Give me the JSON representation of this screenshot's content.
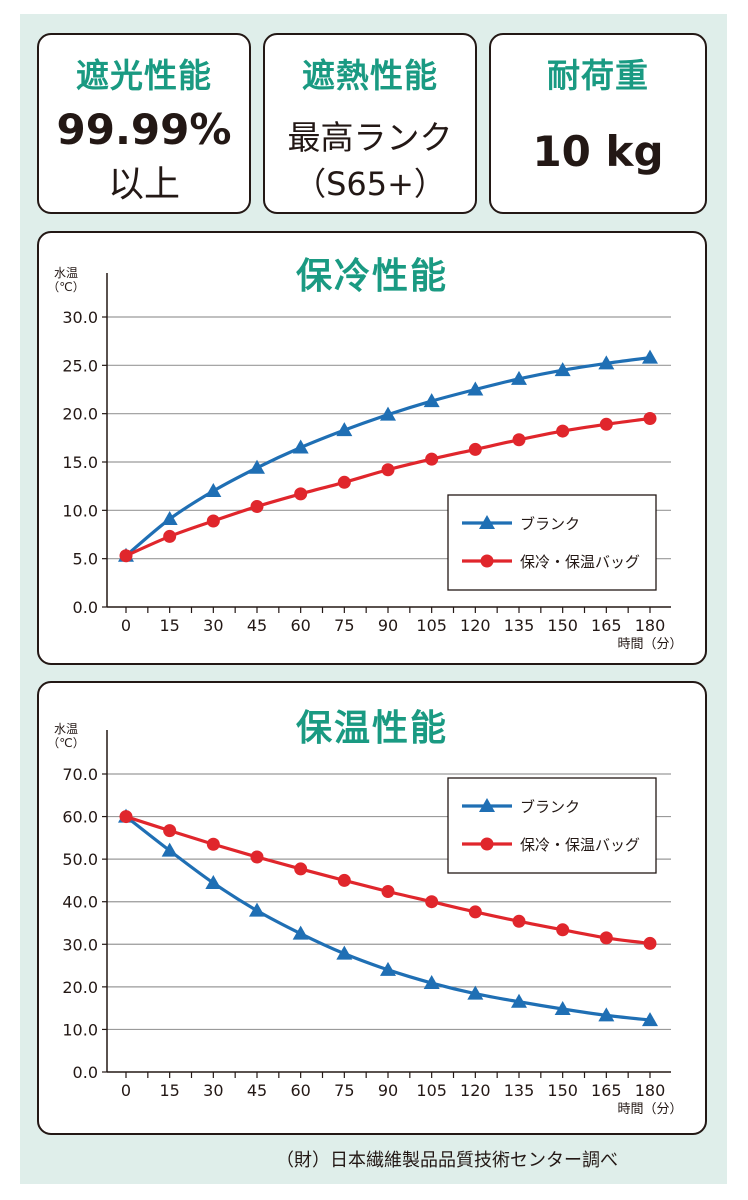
{
  "specs": [
    {
      "title": "遮光性能",
      "line1": "99.99%",
      "line2": "以上"
    },
    {
      "title": "遮熱性能",
      "line1": "最高ランク",
      "line2": "（S65+）"
    },
    {
      "title": "耐荷重",
      "line1": "10 kg",
      "line2": ""
    }
  ],
  "chart_data": [
    {
      "type": "line",
      "title": "保冷性能",
      "ylabel": "水温\n（℃）",
      "xlabel": "時間（分）",
      "x": [
        0,
        15,
        30,
        45,
        60,
        75,
        90,
        105,
        120,
        135,
        150,
        165,
        180
      ],
      "ylim": [
        0,
        30
      ],
      "yticks": [
        "0.0",
        "5.0",
        "10.0",
        "15.0",
        "20.0",
        "25.0",
        "30.0"
      ],
      "grid": true,
      "legend_position": "bottom-right",
      "series": [
        {
          "name": "ブランク",
          "color": "#1f6fb4",
          "marker": "triangle",
          "values": [
            5.3,
            9.1,
            12.0,
            14.4,
            16.5,
            18.3,
            19.9,
            21.3,
            22.5,
            23.6,
            24.5,
            25.2,
            25.8
          ]
        },
        {
          "name": "保冷・保温バッグ",
          "color": "#e0262c",
          "marker": "circle",
          "values": [
            5.3,
            7.3,
            8.9,
            10.4,
            11.7,
            12.9,
            14.2,
            15.3,
            16.3,
            17.3,
            18.2,
            18.9,
            19.5
          ]
        }
      ]
    },
    {
      "type": "line",
      "title": "保温性能",
      "ylabel": "水温\n（℃）",
      "xlabel": "時間（分）",
      "x": [
        0,
        15,
        30,
        45,
        60,
        75,
        90,
        105,
        120,
        135,
        150,
        165,
        180
      ],
      "ylim": [
        0,
        70
      ],
      "yticks": [
        "0.0",
        "10.0",
        "20.0",
        "30.0",
        "40.0",
        "50.0",
        "60.0",
        "70.0"
      ],
      "grid": true,
      "legend_position": "top-right",
      "series": [
        {
          "name": "ブランク",
          "color": "#1f6fb4",
          "marker": "triangle",
          "values": [
            60.0,
            52.0,
            44.4,
            37.9,
            32.5,
            27.8,
            24.0,
            20.9,
            18.4,
            16.5,
            14.8,
            13.3,
            12.2
          ]
        },
        {
          "name": "保冷・保温バッグ",
          "color": "#e0262c",
          "marker": "circle",
          "values": [
            60.0,
            56.7,
            53.5,
            50.5,
            47.7,
            45.0,
            42.4,
            40.0,
            37.6,
            35.4,
            33.4,
            31.5,
            30.2
          ]
        }
      ]
    }
  ],
  "credit": "（財）日本繊維製品品質技術センター調べ"
}
